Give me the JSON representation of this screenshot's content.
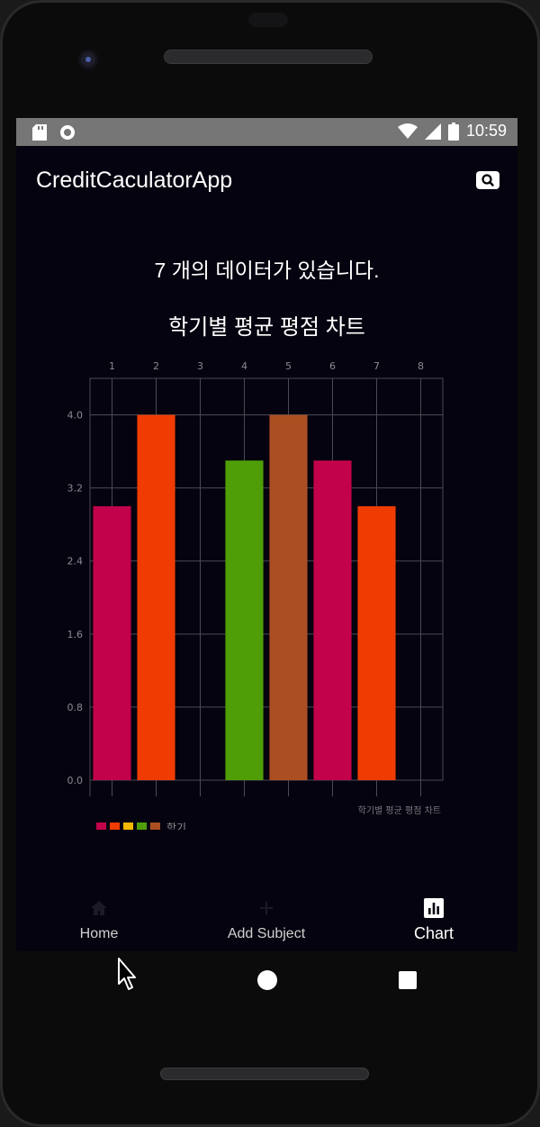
{
  "status_bar": {
    "time": "10:59"
  },
  "app_bar": {
    "title": "CreditCaculatorApp",
    "search_icon": "search-icon"
  },
  "main": {
    "data_count_text": "7 개의 데이터가 있습니다.",
    "chart_heading": "학기별 평균 평점 차트"
  },
  "chart_data": {
    "type": "bar",
    "x_ticks": [
      "1",
      "2",
      "3",
      "4",
      "5",
      "6",
      "7",
      "8"
    ],
    "y_ticks": [
      "0.0",
      "0.8",
      "1.6",
      "2.4",
      "3.2",
      "4.0"
    ],
    "ylim": [
      0,
      4.4
    ],
    "grid": true,
    "description_label": "학기별 평균 평점 차트",
    "legend": {
      "label": "학기",
      "colors": [
        "#c2024a",
        "#f03c02",
        "#f5b800",
        "#4f9e08",
        "#ab4f22"
      ],
      "placement": "bottom-left"
    },
    "bars": [
      {
        "x": 1,
        "value": 3.0,
        "color": "#c2024a"
      },
      {
        "x": 2,
        "value": 4.0,
        "color": "#f03c02"
      },
      {
        "x": 4,
        "value": 3.5,
        "color": "#4f9e08"
      },
      {
        "x": 5,
        "value": 4.0,
        "color": "#ab4f22"
      },
      {
        "x": 6,
        "value": 3.5,
        "color": "#c2024a"
      },
      {
        "x": 7,
        "value": 3.0,
        "color": "#f03c02"
      }
    ]
  },
  "bottom_nav": {
    "items": [
      {
        "label": "Home",
        "icon": "home-icon"
      },
      {
        "label": "Add Subject",
        "icon": "add-icon"
      },
      {
        "label": "Chart",
        "icon": "bar-chart-icon"
      }
    ]
  }
}
